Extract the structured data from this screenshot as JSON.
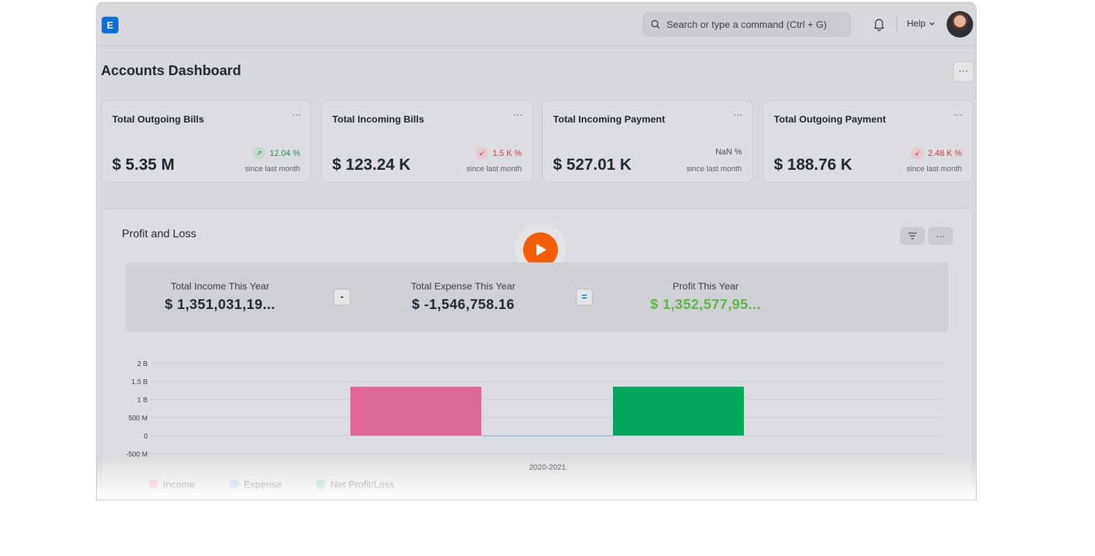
{
  "header": {
    "logo_letter": "E",
    "search_placeholder": "Search or type a command (Ctrl + G)",
    "help_label": "Help"
  },
  "page": {
    "title": "Accounts Dashboard",
    "menu": "···"
  },
  "cards": [
    {
      "title": "Total Outgoing Bills",
      "value": "$ 5.35 M",
      "trend": "12.04 %",
      "direction": "up",
      "since": "since last month"
    },
    {
      "title": "Total Incoming Bills",
      "value": "$ 123.24 K",
      "trend": "1.5 K %",
      "direction": "down",
      "since": "since last month"
    },
    {
      "title": "Total Incoming Payment",
      "value": "$ 527.01 K",
      "trend": "NaN %",
      "direction": "neutral",
      "since": "since last month"
    },
    {
      "title": "Total Outgoing Payment",
      "value": "$ 188.76 K",
      "trend": "2.48 K %",
      "direction": "down",
      "since": "since last month"
    }
  ],
  "profit_loss": {
    "title": "Profit and Loss",
    "income_label": "Total Income This Year",
    "income_value": "$ 1,351,031,19...",
    "minus": "-",
    "expense_label": "Total Expense This Year",
    "expense_value": "$ -1,546,758.16",
    "equals": "=",
    "profit_label": "Profit This Year",
    "profit_value": "$ 1,352,577,95..."
  },
  "colors": {
    "income": "#de6796",
    "expense": "#7cb4ec",
    "net": "#03a85f",
    "profit_text": "#5bb54a",
    "play": "#f55e07"
  },
  "chart_data": {
    "type": "bar",
    "categories": [
      "2020-2021"
    ],
    "series": [
      {
        "name": "Income",
        "values": [
          1351031190
        ]
      },
      {
        "name": "Expense",
        "values": [
          -1546758.16
        ]
      },
      {
        "name": "Net Profit/Loss",
        "values": [
          1352577950
        ]
      }
    ],
    "ylim": [
      -500000000,
      2000000000
    ],
    "yticks": [
      -500000000,
      0,
      500000000,
      1000000000,
      1500000000,
      2000000000
    ],
    "ytick_labels": [
      "-500 M",
      "0",
      "500 M",
      "1 B",
      "1.5 B",
      "2 B"
    ],
    "grid": true,
    "legend_position": "bottom-left"
  }
}
